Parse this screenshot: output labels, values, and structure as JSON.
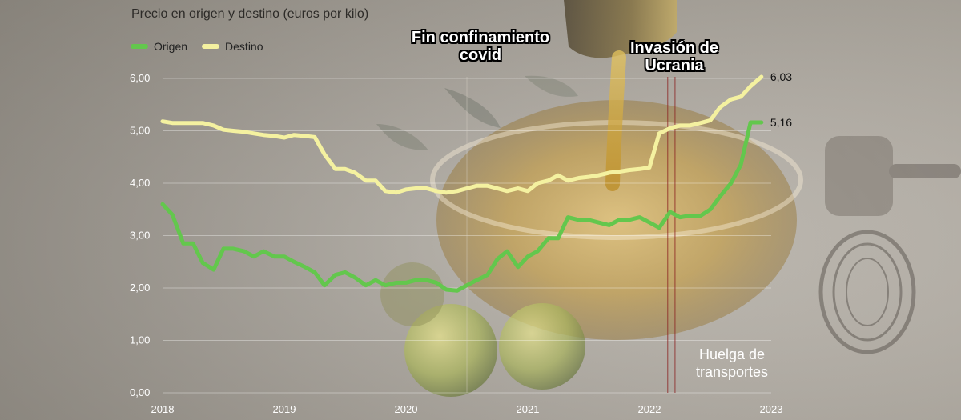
{
  "chart_data": {
    "type": "line",
    "title": "Precio en origen y destino (euros por kilo)",
    "xlabel": "",
    "ylabel": "",
    "x_ticks": [
      "2018",
      "2019",
      "2020",
      "2021",
      "2022",
      "2023"
    ],
    "y_ticks": [
      "0,00",
      "1,00",
      "2,00",
      "3,00",
      "4,00",
      "5,00",
      "6,00"
    ],
    "xlim": [
      2018,
      2023
    ],
    "ylim": [
      0,
      6
    ],
    "legend_position": "top-left",
    "x": [
      2018.0,
      2018.08,
      2018.17,
      2018.25,
      2018.33,
      2018.42,
      2018.5,
      2018.58,
      2018.67,
      2018.75,
      2018.83,
      2018.92,
      2019.0,
      2019.08,
      2019.17,
      2019.25,
      2019.33,
      2019.42,
      2019.5,
      2019.58,
      2019.67,
      2019.75,
      2019.83,
      2019.92,
      2020.0,
      2020.08,
      2020.17,
      2020.25,
      2020.33,
      2020.42,
      2020.5,
      2020.58,
      2020.67,
      2020.75,
      2020.83,
      2020.92,
      2021.0,
      2021.08,
      2021.17,
      2021.25,
      2021.33,
      2021.42,
      2021.5,
      2021.58,
      2021.67,
      2021.75,
      2021.83,
      2021.92,
      2022.0,
      2022.08,
      2022.17,
      2022.25,
      2022.33,
      2022.42,
      2022.5,
      2022.58,
      2022.67,
      2022.75,
      2022.83,
      2022.92
    ],
    "series": [
      {
        "name": "Origen",
        "values": [
          3.6,
          3.4,
          2.85,
          2.85,
          2.48,
          2.35,
          2.75,
          2.75,
          2.7,
          2.6,
          2.7,
          2.6,
          2.6,
          2.5,
          2.4,
          2.3,
          2.05,
          2.25,
          2.3,
          2.2,
          2.05,
          2.15,
          2.05,
          2.1,
          2.1,
          2.15,
          2.15,
          2.1,
          1.97,
          1.95,
          2.05,
          2.15,
          2.25,
          2.55,
          2.7,
          2.4,
          2.6,
          2.7,
          2.95,
          2.95,
          3.35,
          3.3,
          3.3,
          3.25,
          3.2,
          3.3,
          3.3,
          3.35,
          3.25,
          3.15,
          3.45,
          3.35,
          3.38,
          3.38,
          3.5,
          3.75,
          4.0,
          4.35,
          5.16,
          5.16
        ]
      },
      {
        "name": "Destino",
        "values": [
          5.18,
          5.15,
          5.15,
          5.15,
          5.15,
          5.1,
          5.02,
          5.0,
          4.98,
          4.95,
          4.92,
          4.9,
          4.87,
          4.92,
          4.9,
          4.88,
          4.55,
          4.27,
          4.27,
          4.2,
          4.05,
          4.05,
          3.85,
          3.82,
          3.88,
          3.9,
          3.9,
          3.85,
          3.82,
          3.85,
          3.9,
          3.95,
          3.95,
          3.9,
          3.85,
          3.9,
          3.85,
          4.0,
          4.05,
          4.15,
          4.05,
          4.1,
          4.12,
          4.15,
          4.2,
          4.22,
          4.25,
          4.27,
          4.3,
          4.95,
          5.05,
          5.1,
          5.1,
          5.15,
          5.2,
          5.45,
          5.6,
          5.65,
          5.85,
          6.03
        ]
      }
    ],
    "end_labels": [
      "5,16",
      "6,03"
    ],
    "annotations": [
      {
        "text": "Fin confinamiento covid",
        "x": 2020.5
      },
      {
        "text": "Invasión de Ucrania",
        "x": 2022.15
      },
      {
        "text": "Huelga de transportes",
        "x": 2022.21
      }
    ],
    "colors": {
      "origen": "#63c74d",
      "destino": "#f4f1a0",
      "annotation_line": "#8b2020"
    }
  },
  "ui": {
    "legend_origen": "Origen",
    "legend_destino": "Destino",
    "annotation_covid_line1": "Fin confinamiento",
    "annotation_covid_line2": "covid",
    "annotation_ukraine_line1": "Invasión de",
    "annotation_ukraine_line2": "Ucrania",
    "annotation_strike_line1": "Huelga de",
    "annotation_strike_line2": "transportes"
  }
}
